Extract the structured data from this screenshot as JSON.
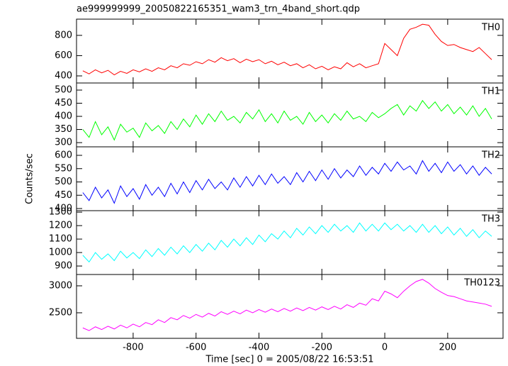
{
  "chart_data": [
    {
      "type": "line",
      "title": "ae999999999_20050822165351_wam3_trn_4band_short.qdp",
      "x": [
        -960,
        -940,
        -920,
        -900,
        -880,
        -860,
        -840,
        -820,
        -800,
        -780,
        -760,
        -740,
        -720,
        -700,
        -680,
        -660,
        -640,
        -620,
        -600,
        -580,
        -560,
        -540,
        -520,
        -500,
        -480,
        -460,
        -440,
        -420,
        -400,
        -380,
        -360,
        -340,
        -320,
        -300,
        -280,
        -260,
        -240,
        -220,
        -200,
        -180,
        -160,
        -140,
        -120,
        -100,
        -80,
        -60,
        -40,
        -20,
        0,
        20,
        40,
        60,
        80,
        100,
        120,
        140,
        160,
        180,
        200,
        220,
        240,
        260,
        280,
        300,
        320,
        340
      ],
      "series": [
        {
          "name": "TH0",
          "color": "#ff0000",
          "values": [
            450,
            420,
            460,
            430,
            455,
            410,
            445,
            425,
            460,
            440,
            470,
            445,
            480,
            460,
            500,
            480,
            520,
            505,
            540,
            520,
            560,
            535,
            580,
            550,
            570,
            530,
            565,
            540,
            560,
            520,
            545,
            510,
            535,
            500,
            520,
            480,
            510,
            470,
            495,
            460,
            490,
            470,
            530,
            490,
            520,
            480,
            500,
            520,
            720,
            660,
            600,
            770,
            860,
            880,
            910,
            900,
            810,
            740,
            700,
            710,
            680,
            660,
            640,
            680,
            620,
            560
          ]
        }
      ],
      "xlim": [
        -980,
        376
      ],
      "xticks": [
        -800,
        -600,
        -400,
        -200,
        0,
        200
      ],
      "ylim": [
        330,
        960
      ],
      "yticks": [
        400,
        600,
        800
      ]
    },
    {
      "type": "line",
      "x": [
        -960,
        -940,
        -920,
        -900,
        -880,
        -860,
        -840,
        -820,
        -800,
        -780,
        -760,
        -740,
        -720,
        -700,
        -680,
        -660,
        -640,
        -620,
        -600,
        -580,
        -560,
        -540,
        -520,
        -500,
        -480,
        -460,
        -440,
        -420,
        -400,
        -380,
        -360,
        -340,
        -320,
        -300,
        -280,
        -260,
        -240,
        -220,
        -200,
        -180,
        -160,
        -140,
        -120,
        -100,
        -80,
        -60,
        -40,
        -20,
        0,
        20,
        40,
        60,
        80,
        100,
        120,
        140,
        160,
        180,
        200,
        220,
        240,
        260,
        280,
        300,
        320,
        340
      ],
      "series": [
        {
          "name": "TH1",
          "color": "#00ff00",
          "values": [
            350,
            320,
            380,
            330,
            360,
            310,
            370,
            340,
            355,
            320,
            375,
            345,
            365,
            335,
            380,
            350,
            390,
            360,
            405,
            370,
            410,
            380,
            420,
            385,
            400,
            375,
            415,
            390,
            425,
            380,
            410,
            375,
            420,
            385,
            400,
            370,
            415,
            380,
            405,
            375,
            410,
            385,
            420,
            390,
            400,
            380,
            415,
            395,
            410,
            430,
            445,
            405,
            440,
            420,
            460,
            430,
            455,
            420,
            445,
            410,
            435,
            405,
            440,
            400,
            430,
            390
          ]
        }
      ],
      "xlim": [
        -980,
        376
      ],
      "xticks": [
        -800,
        -600,
        -400,
        -200,
        0,
        200
      ],
      "ylim": [
        284,
        527
      ],
      "yticks": [
        300,
        350,
        400,
        450,
        500
      ]
    },
    {
      "type": "line",
      "ylabel": "Counts/sec",
      "x": [
        -960,
        -940,
        -920,
        -900,
        -880,
        -860,
        -840,
        -820,
        -800,
        -780,
        -760,
        -740,
        -720,
        -700,
        -680,
        -660,
        -640,
        -620,
        -600,
        -580,
        -560,
        -540,
        -520,
        -500,
        -480,
        -460,
        -440,
        -420,
        -400,
        -380,
        -360,
        -340,
        -320,
        -300,
        -280,
        -260,
        -240,
        -220,
        -200,
        -180,
        -160,
        -140,
        -120,
        -100,
        -80,
        -60,
        -40,
        -20,
        0,
        20,
        40,
        60,
        80,
        100,
        120,
        140,
        160,
        180,
        200,
        220,
        240,
        260,
        280,
        300,
        320,
        340
      ],
      "series": [
        {
          "name": "TH2",
          "color": "#0000ff",
          "values": [
            460,
            430,
            480,
            440,
            470,
            420,
            485,
            445,
            475,
            435,
            490,
            450,
            480,
            445,
            495,
            455,
            500,
            460,
            505,
            470,
            510,
            475,
            500,
            470,
            515,
            480,
            520,
            485,
            525,
            490,
            530,
            495,
            520,
            490,
            535,
            500,
            540,
            505,
            545,
            510,
            550,
            515,
            545,
            520,
            560,
            525,
            555,
            530,
            570,
            540,
            575,
            545,
            560,
            530,
            580,
            540,
            570,
            535,
            575,
            540,
            565,
            530,
            560,
            525,
            555,
            530
          ]
        }
      ],
      "xlim": [
        -980,
        376
      ],
      "xticks": [
        -800,
        -600,
        -400,
        -200,
        0,
        200
      ],
      "ylim": [
        392,
        632
      ],
      "yticks": [
        400,
        450,
        500,
        550,
        600
      ]
    },
    {
      "type": "line",
      "x": [
        -960,
        -940,
        -920,
        -900,
        -880,
        -860,
        -840,
        -820,
        -800,
        -780,
        -760,
        -740,
        -720,
        -700,
        -680,
        -660,
        -640,
        -620,
        -600,
        -580,
        -560,
        -540,
        -520,
        -500,
        -480,
        -460,
        -440,
        -420,
        -400,
        -380,
        -360,
        -340,
        -320,
        -300,
        -280,
        -260,
        -240,
        -220,
        -200,
        -180,
        -160,
        -140,
        -120,
        -100,
        -80,
        -60,
        -40,
        -20,
        0,
        20,
        40,
        60,
        80,
        100,
        120,
        140,
        160,
        180,
        200,
        220,
        240,
        260,
        280,
        300,
        320,
        340
      ],
      "series": [
        {
          "name": "TH3",
          "color": "#00ffff",
          "values": [
            980,
            930,
            1000,
            950,
            990,
            940,
            1010,
            960,
            1000,
            955,
            1020,
            970,
            1030,
            980,
            1040,
            990,
            1050,
            1000,
            1060,
            1010,
            1070,
            1020,
            1090,
            1040,
            1100,
            1050,
            1110,
            1060,
            1130,
            1080,
            1140,
            1100,
            1160,
            1110,
            1180,
            1130,
            1190,
            1140,
            1200,
            1150,
            1210,
            1160,
            1200,
            1150,
            1220,
            1160,
            1210,
            1160,
            1220,
            1170,
            1210,
            1160,
            1200,
            1150,
            1210,
            1150,
            1200,
            1140,
            1190,
            1130,
            1180,
            1120,
            1170,
            1110,
            1160,
            1120
          ]
        }
      ],
      "xlim": [
        -980,
        376
      ],
      "xticks": [
        -800,
        -600,
        -400,
        -200,
        0,
        200
      ],
      "ylim": [
        837,
        1311
      ],
      "yticks": [
        900,
        1000,
        1100,
        1200,
        1300
      ]
    },
    {
      "type": "line",
      "xlabel": "Time [sec] 0 = 2005/08/22 16:53:51",
      "x": [
        -960,
        -940,
        -920,
        -900,
        -880,
        -860,
        -840,
        -820,
        -800,
        -780,
        -760,
        -740,
        -720,
        -700,
        -680,
        -660,
        -640,
        -620,
        -600,
        -580,
        -560,
        -540,
        -520,
        -500,
        -480,
        -460,
        -440,
        -420,
        -400,
        -380,
        -360,
        -340,
        -320,
        -300,
        -280,
        -260,
        -240,
        -220,
        -200,
        -180,
        -160,
        -140,
        -120,
        -100,
        -80,
        -60,
        -40,
        -20,
        0,
        20,
        40,
        60,
        80,
        100,
        120,
        140,
        160,
        180,
        200,
        220,
        240,
        260,
        280,
        300,
        320,
        340
      ],
      "series": [
        {
          "name": "TH0123",
          "color": "#ff00ff",
          "values": [
            2220,
            2170,
            2240,
            2190,
            2250,
            2200,
            2270,
            2220,
            2290,
            2240,
            2320,
            2280,
            2370,
            2320,
            2410,
            2370,
            2450,
            2400,
            2470,
            2420,
            2490,
            2440,
            2520,
            2470,
            2530,
            2480,
            2550,
            2500,
            2560,
            2510,
            2570,
            2520,
            2580,
            2530,
            2590,
            2540,
            2600,
            2550,
            2610,
            2560,
            2620,
            2570,
            2650,
            2600,
            2680,
            2640,
            2760,
            2720,
            2900,
            2850,
            2780,
            2900,
            3000,
            3080,
            3120,
            3050,
            2950,
            2880,
            2820,
            2800,
            2760,
            2720,
            2700,
            2680,
            2660,
            2620
          ]
        }
      ],
      "xlim": [
        -980,
        376
      ],
      "xticks": [
        -800,
        -600,
        -400,
        -200,
        0,
        200
      ],
      "ylim": [
        2026,
        3210
      ],
      "yticks": [
        2500,
        3000
      ]
    }
  ]
}
